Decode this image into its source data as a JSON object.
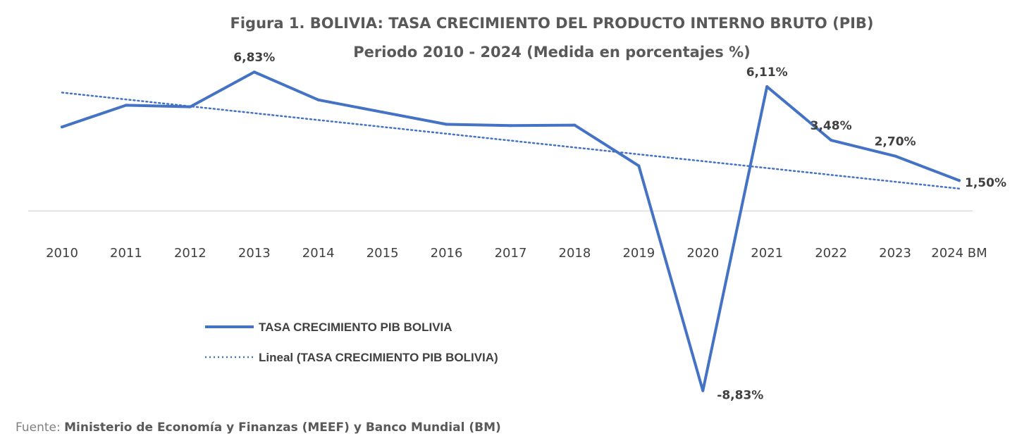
{
  "chart_data": {
    "type": "line",
    "title": "Figura 1. BOLIVIA: TASA CRECIMIENTO DEL PRODUCTO INTERNO BRUTO (PIB)",
    "subtitle": "Periodo 2010 - 2024 (Medida en porcentajes %)",
    "categories": [
      "2010",
      "2011",
      "2012",
      "2013",
      "2014",
      "2015",
      "2016",
      "2017",
      "2018",
      "2019",
      "2020",
      "2021",
      "2022",
      "2023",
      "2024 BM"
    ],
    "series": [
      {
        "name": "TASA CRECIMIENTO PIB BOLIVIA",
        "color": "#4472C4",
        "values": [
          4.13,
          5.2,
          5.12,
          6.83,
          5.46,
          4.86,
          4.26,
          4.2,
          4.22,
          2.22,
          -8.83,
          6.11,
          3.48,
          2.7,
          1.5
        ],
        "labels": [
          "",
          "",
          "",
          "6,83%",
          "",
          "",
          "",
          "",
          "",
          "",
          "-8,83%",
          "6,11%",
          "3,48%",
          "2,70%",
          "1,50%"
        ]
      },
      {
        "name": "Lineal (TASA CRECIMIENTO PIB BOLIVIA)",
        "color": "#4472C4",
        "style": "dotted",
        "trend_start": 5.82,
        "trend_end": 1.1
      }
    ],
    "xlabel": "",
    "ylabel": "",
    "ylim": [
      -9.5,
      8.5
    ],
    "grid": false,
    "legend": "bottom-left"
  },
  "source": {
    "prefix": "Fuente: ",
    "text": "Ministerio de Economía y Finanzas (MEEF) y Banco Mundial (BM)"
  }
}
